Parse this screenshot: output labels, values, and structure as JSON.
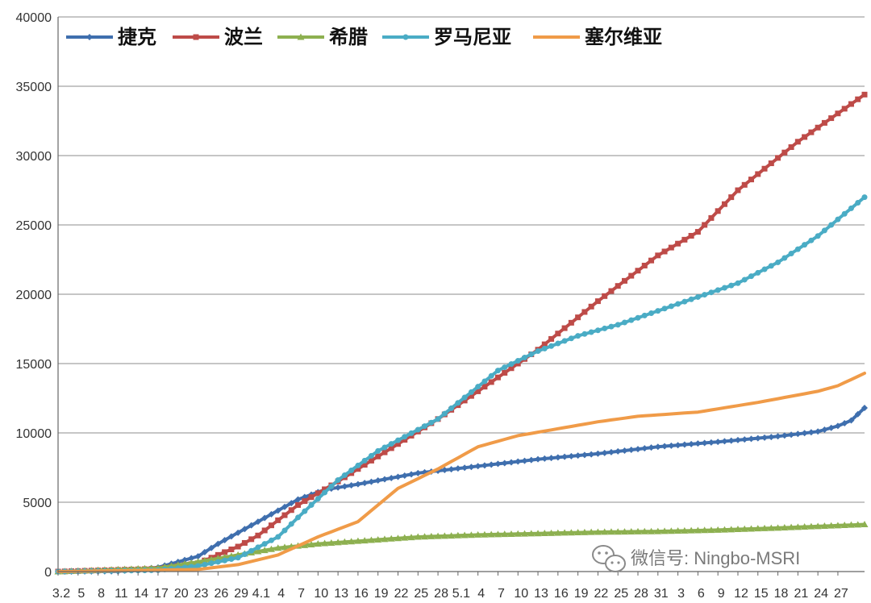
{
  "chart_data": {
    "type": "line",
    "ylim": [
      0,
      40000
    ],
    "yticks": [
      0,
      5000,
      10000,
      15000,
      20000,
      25000,
      30000,
      35000,
      40000
    ],
    "grid": "horizontal",
    "legend": "top",
    "x_tick_labels": [
      "3.2",
      "5",
      "8",
      "11",
      "14",
      "17",
      "20",
      "23",
      "26",
      "29",
      "4.1",
      "4",
      "7",
      "10",
      "13",
      "16",
      "19",
      "22",
      "25",
      "28",
      "5.1",
      "4",
      "7",
      "10",
      "13",
      "16",
      "19",
      "22",
      "25",
      "28",
      "31",
      "3",
      "6",
      "9",
      "12",
      "15",
      "18",
      "21",
      "24",
      "27"
    ],
    "x_points": 122,
    "series": [
      {
        "name": "捷克",
        "color": "#3f6fae",
        "marker": "diamond",
        "anchors": [
          [
            0,
            0
          ],
          [
            9,
            15
          ],
          [
            15,
            300
          ],
          [
            21,
            1100
          ],
          [
            24,
            2000
          ],
          [
            27,
            2800
          ],
          [
            30,
            3600
          ],
          [
            33,
            4400
          ],
          [
            36,
            5200
          ],
          [
            40,
            5900
          ],
          [
            45,
            6300
          ],
          [
            54,
            7100
          ],
          [
            63,
            7600
          ],
          [
            72,
            8100
          ],
          [
            81,
            8500
          ],
          [
            90,
            9000
          ],
          [
            99,
            9350
          ],
          [
            108,
            9750
          ],
          [
            114,
            10100
          ],
          [
            117,
            10500
          ],
          [
            119,
            10900
          ],
          [
            121,
            11800
          ]
        ]
      },
      {
        "name": "波兰",
        "color": "#be4b48",
        "marker": "square",
        "anchors": [
          [
            0,
            0
          ],
          [
            15,
            200
          ],
          [
            21,
            600
          ],
          [
            27,
            1800
          ],
          [
            30,
            2600
          ],
          [
            33,
            3700
          ],
          [
            36,
            4800
          ],
          [
            42,
            6500
          ],
          [
            48,
            8300
          ],
          [
            57,
            11000
          ],
          [
            63,
            13000
          ],
          [
            72,
            16000
          ],
          [
            81,
            19500
          ],
          [
            90,
            22800
          ],
          [
            96,
            24500
          ],
          [
            102,
            27500
          ],
          [
            111,
            31000
          ],
          [
            121,
            34400
          ]
        ]
      },
      {
        "name": "希腊",
        "color": "#8db050",
        "marker": "triangle",
        "anchors": [
          [
            0,
            0
          ],
          [
            15,
            250
          ],
          [
            21,
            700
          ],
          [
            27,
            1200
          ],
          [
            33,
            1700
          ],
          [
            39,
            2000
          ],
          [
            45,
            2200
          ],
          [
            54,
            2500
          ],
          [
            63,
            2650
          ],
          [
            72,
            2750
          ],
          [
            81,
            2850
          ],
          [
            90,
            2900
          ],
          [
            99,
            3000
          ],
          [
            108,
            3150
          ],
          [
            121,
            3400
          ]
        ]
      },
      {
        "name": "罗马尼亚",
        "color": "#4aacc5",
        "marker": "circle",
        "anchors": [
          [
            0,
            0
          ],
          [
            15,
            100
          ],
          [
            21,
            400
          ],
          [
            27,
            1000
          ],
          [
            33,
            2500
          ],
          [
            36,
            3900
          ],
          [
            42,
            6600
          ],
          [
            48,
            8700
          ],
          [
            57,
            11000
          ],
          [
            66,
            14500
          ],
          [
            72,
            15900
          ],
          [
            78,
            17000
          ],
          [
            84,
            17800
          ],
          [
            90,
            18800
          ],
          [
            96,
            19800
          ],
          [
            102,
            20800
          ],
          [
            108,
            22300
          ],
          [
            114,
            24200
          ],
          [
            121,
            27000
          ]
        ]
      },
      {
        "name": "塞尔维亚",
        "color": "#f09b48",
        "marker": "none",
        "anchors": [
          [
            0,
            0
          ],
          [
            21,
            150
          ],
          [
            27,
            500
          ],
          [
            33,
            1200
          ],
          [
            39,
            2500
          ],
          [
            45,
            3600
          ],
          [
            51,
            6000
          ],
          [
            57,
            7400
          ],
          [
            63,
            9000
          ],
          [
            69,
            9800
          ],
          [
            75,
            10300
          ],
          [
            81,
            10800
          ],
          [
            87,
            11200
          ],
          [
            96,
            11500
          ],
          [
            105,
            12200
          ],
          [
            114,
            13000
          ],
          [
            117,
            13400
          ],
          [
            121,
            14300
          ]
        ]
      }
    ]
  },
  "watermark": {
    "text": "微信号: Ningbo-MSRI",
    "icon": "wechat-icon"
  }
}
